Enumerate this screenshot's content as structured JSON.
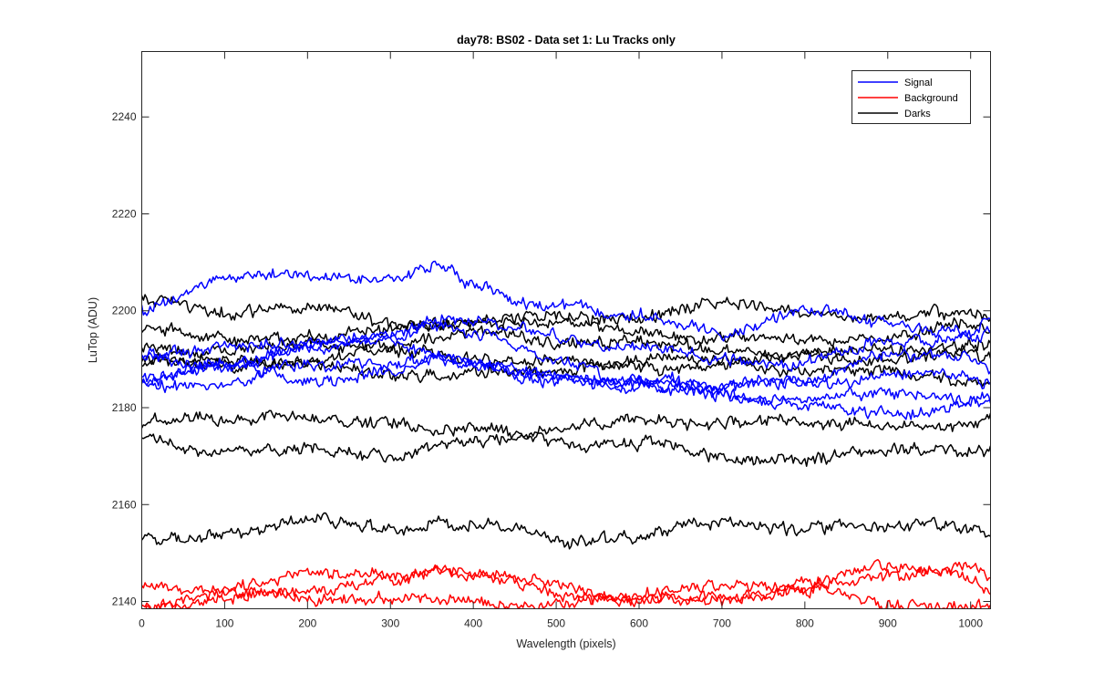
{
  "chart_data": {
    "type": "line",
    "title": "day78: BS02 - Data set 1: Lu Tracks only",
    "xlabel": "Wavelength (pixels)",
    "ylabel": "LuTop (ADU)",
    "xlim": [
      0,
      1024
    ],
    "ylim": [
      2138.5,
      2253.5
    ],
    "xticks": [
      0,
      100,
      200,
      300,
      400,
      500,
      600,
      700,
      800,
      900,
      1000
    ],
    "yticks": [
      2140,
      2160,
      2180,
      2200,
      2220,
      2240
    ],
    "grid": false,
    "legend_position": "top-right",
    "legend": [
      {
        "label": "Signal",
        "color": "#0000ff"
      },
      {
        "label": "Background",
        "color": "#ff0000"
      },
      {
        "label": "Darks",
        "color": "#000000"
      }
    ],
    "x_sample_points": [
      0,
      100,
      200,
      300,
      360,
      400,
      500,
      600,
      700,
      800,
      900,
      1000,
      1024
    ],
    "series": [
      {
        "group": "Signal",
        "color": "#0000ff",
        "values": [
          2200,
          2205,
          2207,
          2207,
          2210,
          2206,
          2202,
          2198,
          2195,
          2199,
          2198,
          2197,
          2199
        ]
      },
      {
        "group": "Signal",
        "color": "#0000ff",
        "values": [
          2192,
          2194,
          2193,
          2195,
          2197,
          2196,
          2195,
          2193,
          2191,
          2190,
          2192,
          2194,
          2195
        ]
      },
      {
        "group": "Signal",
        "color": "#0000ff",
        "values": [
          2187,
          2190,
          2192,
          2194,
          2196,
          2194,
          2190,
          2187,
          2185,
          2186,
          2189,
          2190,
          2188
        ]
      },
      {
        "group": "Signal",
        "color": "#0000ff",
        "values": [
          2185,
          2188,
          2191,
          2193,
          2192,
          2190,
          2187,
          2185,
          2183,
          2184,
          2186,
          2187,
          2186
        ]
      },
      {
        "group": "Signal",
        "color": "#0000ff",
        "values": [
          2183,
          2185,
          2189,
          2191,
          2191,
          2189,
          2186,
          2184,
          2182,
          2183,
          2184,
          2183,
          2183
        ]
      },
      {
        "group": "Signal",
        "color": "#0000ff",
        "values": [
          2190,
          2188,
          2186,
          2189,
          2190,
          2189,
          2185,
          2183,
          2183,
          2181,
          2180,
          2181,
          2182
        ]
      },
      {
        "group": "Background",
        "color": "#ff0000",
        "values": [
          2144,
          2143,
          2144,
          2145,
          2146,
          2145,
          2143,
          2142,
          2143,
          2143,
          2146,
          2146,
          2143
        ]
      },
      {
        "group": "Background",
        "color": "#ff0000",
        "values": [
          2140,
          2142,
          2142,
          2144,
          2145,
          2144,
          2144,
          2141,
          2142,
          2143,
          2144,
          2147,
          2144
        ]
      },
      {
        "group": "Background",
        "color": "#ff0000",
        "values": [
          2139,
          2140,
          2140,
          2141,
          2141,
          2141,
          2141,
          2140,
          2140,
          2141,
          2140,
          2140,
          2140
        ]
      },
      {
        "group": "Darks",
        "color": "#000000",
        "values": [
          2201,
          2199,
          2200,
          2198,
          2199,
          2199,
          2199,
          2198,
          2200,
          2200,
          2199,
          2201,
          2200
        ]
      },
      {
        "group": "Darks",
        "color": "#000000",
        "values": [
          2196,
          2195,
          2196,
          2196,
          2197,
          2197,
          2196,
          2196,
          2195,
          2195,
          2195,
          2196,
          2195
        ]
      },
      {
        "group": "Darks",
        "color": "#000000",
        "values": [
          2193,
          2193,
          2194,
          2193,
          2193,
          2194,
          2193,
          2193,
          2193,
          2192,
          2192,
          2192,
          2192
        ]
      },
      {
        "group": "Darks",
        "color": "#000000",
        "values": [
          2191,
          2190,
          2190,
          2190,
          2190,
          2190,
          2190,
          2190,
          2190,
          2190,
          2189,
          2190,
          2189
        ]
      },
      {
        "group": "Darks",
        "color": "#000000",
        "values": [
          2189,
          2188,
          2188,
          2188,
          2188,
          2188,
          2188,
          2189,
          2188,
          2188,
          2188,
          2187,
          2187
        ]
      },
      {
        "group": "Darks",
        "color": "#000000",
        "values": [
          2177,
          2176,
          2178,
          2177,
          2176,
          2177,
          2176,
          2177,
          2176,
          2176,
          2177,
          2177,
          2179
        ]
      },
      {
        "group": "Darks",
        "color": "#000000",
        "values": [
          2173,
          2172,
          2172,
          2171,
          2172,
          2172,
          2172,
          2172,
          2170,
          2171,
          2171,
          2171,
          2171
        ]
      },
      {
        "group": "Darks",
        "color": "#000000",
        "values": [
          2154,
          2155,
          2156,
          2154,
          2155,
          2155,
          2153,
          2155,
          2157,
          2155,
          2154,
          2155,
          2154
        ]
      }
    ]
  }
}
